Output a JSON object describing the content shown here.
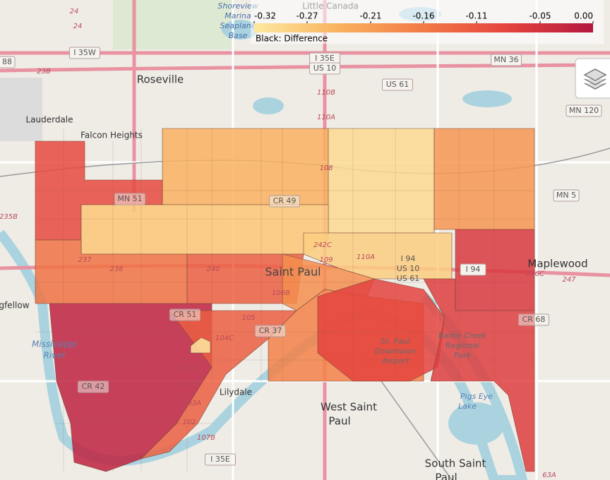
{
  "map": {
    "colorbar": {
      "title": "Black: Difference",
      "ticks": [
        -0.32,
        -0.27,
        -0.21,
        -0.16,
        -0.11,
        -0.05,
        {
          "value": 0,
          "label": "0.00"
        }
      ],
      "colorscale": [
        "#fde9a0",
        "#f9b25f",
        "#f27a45",
        "#e4433e",
        "#b4173f"
      ]
    },
    "regions": [
      -0.24,
      -0.3,
      -0.2,
      -0.09,
      -0.27,
      -0.28,
      -0.06,
      -0.15,
      -0.12,
      -0.19,
      -0.02,
      -0.12,
      -0.17,
      -0.08,
      -0.07,
      -0.32
    ],
    "places": [
      {
        "lines": [
          "Roseville"
        ]
      },
      {
        "lines": [
          "Lauderdale"
        ]
      },
      {
        "lines": [
          "Falcon Heights"
        ]
      },
      {
        "lines": [
          "Saint Paul"
        ]
      },
      {
        "lines": [
          "Maplewood"
        ]
      },
      {
        "lines": [
          "West Saint",
          "Paul"
        ]
      },
      {
        "lines": [
          "South Saint",
          "Paul"
        ]
      },
      {
        "lines": [
          "Lilydale"
        ]
      },
      {
        "lines": [
          "Little Canada"
        ]
      },
      {
        "lines": [
          "Shoreview",
          "Marina",
          "Seaplane",
          "Base"
        ]
      },
      {
        "lines": [
          "Mississippi",
          "River"
        ]
      },
      {
        "lines": [
          "St. Paul",
          "Downtown",
          "Airport"
        ]
      },
      {
        "lines": [
          "Battle Creek",
          "Regional",
          "Park"
        ]
      },
      {
        "lines": [
          "Pigs Eye",
          "Lake"
        ]
      },
      {
        "lines": [
          "gfellow"
        ]
      }
    ],
    "shields": [
      "I 35W",
      "88",
      "I 35E",
      "US 10",
      "MN 36",
      "US 61",
      "MN 120",
      "MN 5",
      "I 94",
      "CR 68",
      "CR 51",
      "CR 37",
      "CR 42",
      "CR 49",
      "MN 51",
      "I 35E",
      "I 94",
      "US 10",
      "US 61"
    ],
    "exits": [
      "23B",
      "110B",
      "110A",
      "235B",
      "246C",
      "247",
      "63A",
      "24",
      "24",
      "240",
      "238",
      "237",
      "105",
      "106B",
      "104C",
      "104A",
      "103B",
      "103A",
      "102",
      "107B",
      "242C",
      "109",
      "110A",
      "108"
    ]
  }
}
